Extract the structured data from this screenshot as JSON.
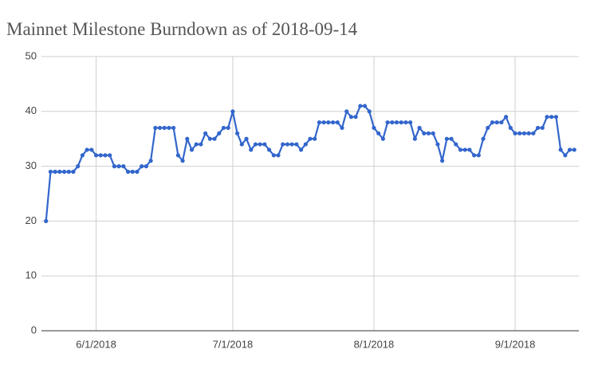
{
  "chart_data": {
    "type": "line",
    "title": "Mainnet Milestone Burndown as of 2018-09-14",
    "x": [
      "5/21/2018",
      "5/22/2018",
      "5/23/2018",
      "5/24/2018",
      "5/25/2018",
      "5/26/2018",
      "5/27/2018",
      "5/28/2018",
      "5/29/2018",
      "5/30/2018",
      "5/31/2018",
      "6/1/2018",
      "6/2/2018",
      "6/3/2018",
      "6/4/2018",
      "6/5/2018",
      "6/6/2018",
      "6/7/2018",
      "6/8/2018",
      "6/9/2018",
      "6/10/2018",
      "6/11/2018",
      "6/12/2018",
      "6/13/2018",
      "6/14/2018",
      "6/15/2018",
      "6/16/2018",
      "6/17/2018",
      "6/18/2018",
      "6/19/2018",
      "6/20/2018",
      "6/21/2018",
      "6/22/2018",
      "6/23/2018",
      "6/24/2018",
      "6/25/2018",
      "6/26/2018",
      "6/27/2018",
      "6/28/2018",
      "6/29/2018",
      "6/30/2018",
      "7/1/2018",
      "7/2/2018",
      "7/3/2018",
      "7/4/2018",
      "7/5/2018",
      "7/6/2018",
      "7/7/2018",
      "7/8/2018",
      "7/9/2018",
      "7/10/2018",
      "7/11/2018",
      "7/12/2018",
      "7/13/2018",
      "7/14/2018",
      "7/15/2018",
      "7/16/2018",
      "7/17/2018",
      "7/18/2018",
      "7/19/2018",
      "7/20/2018",
      "7/21/2018",
      "7/22/2018",
      "7/23/2018",
      "7/24/2018",
      "7/25/2018",
      "7/26/2018",
      "7/27/2018",
      "7/28/2018",
      "7/29/2018",
      "7/30/2018",
      "7/31/2018",
      "8/1/2018",
      "8/2/2018",
      "8/3/2018",
      "8/4/2018",
      "8/5/2018",
      "8/6/2018",
      "8/7/2018",
      "8/8/2018",
      "8/9/2018",
      "8/10/2018",
      "8/11/2018",
      "8/12/2018",
      "8/13/2018",
      "8/14/2018",
      "8/15/2018",
      "8/16/2018",
      "8/17/2018",
      "8/18/2018",
      "8/19/2018",
      "8/20/2018",
      "8/21/2018",
      "8/22/2018",
      "8/23/2018",
      "8/24/2018",
      "8/25/2018",
      "8/26/2018",
      "8/27/2018",
      "8/28/2018",
      "8/29/2018",
      "8/30/2018",
      "8/31/2018",
      "9/1/2018",
      "9/2/2018",
      "9/3/2018",
      "9/4/2018",
      "9/5/2018",
      "9/6/2018",
      "9/7/2018",
      "9/8/2018",
      "9/9/2018",
      "9/10/2018",
      "9/11/2018",
      "9/12/2018",
      "9/13/2018",
      "9/14/2018"
    ],
    "series": [
      {
        "color": "#3366cc",
        "values": [
          20,
          29,
          29,
          29,
          29,
          29,
          29,
          30,
          32,
          33,
          33,
          32,
          32,
          32,
          32,
          30,
          30,
          30,
          29,
          29,
          29,
          30,
          30,
          31,
          37,
          37,
          37,
          37,
          37,
          32,
          31,
          35,
          33,
          34,
          34,
          36,
          35,
          35,
          36,
          37,
          37,
          40,
          36,
          34,
          35,
          33,
          34,
          34,
          34,
          33,
          32,
          32,
          34,
          34,
          34,
          34,
          33,
          34,
          35,
          35,
          38,
          38,
          38,
          38,
          38,
          37,
          40,
          39,
          39,
          41,
          41,
          40,
          37,
          36,
          35,
          38,
          38,
          38,
          38,
          38,
          38,
          35,
          37,
          36,
          36,
          36,
          34,
          31,
          35,
          35,
          34,
          33,
          33,
          33,
          32,
          32,
          35,
          37,
          38,
          38,
          38,
          39,
          37,
          36,
          36,
          36,
          36,
          36,
          37,
          37,
          39,
          39,
          39,
          33,
          32,
          33,
          33
        ]
      }
    ],
    "xlim": [
      "5/20/2018",
      "9/15/2018"
    ],
    "xticks": [
      "6/1/2018",
      "7/1/2018",
      "8/1/2018",
      "9/1/2018"
    ],
    "ylim": [
      0,
      50
    ],
    "yticks": [
      0,
      10,
      20,
      30,
      40,
      50
    ],
    "grid": true
  }
}
